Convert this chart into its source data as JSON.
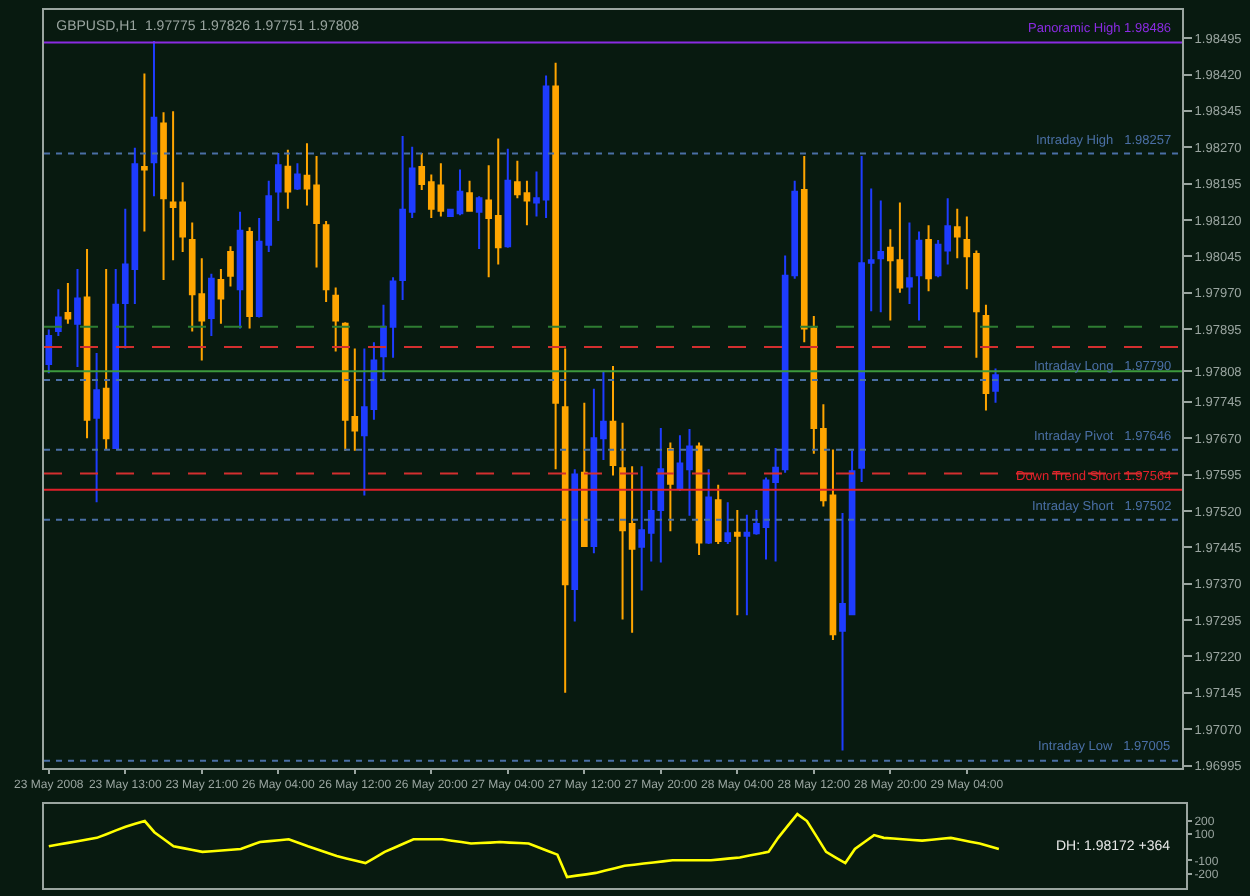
{
  "chart_data": [
    {
      "type": "candlestick",
      "title": "GBPUSD,H1  1.97775 1.97826 1.97751 1.97808",
      "categories": [
        "23 May 2008",
        null,
        null,
        null,
        null,
        null,
        null,
        null,
        "23 May 13:00",
        null,
        null,
        null,
        null,
        null,
        null,
        null,
        "23 May 21:00",
        null,
        null,
        null,
        null,
        null,
        null,
        null,
        "26 May 04:00",
        null,
        null,
        null,
        null,
        null,
        null,
        null,
        "26 May 12:00",
        null,
        null,
        null,
        null,
        null,
        null,
        null,
        "26 May 20:00",
        null,
        null,
        null,
        null,
        null,
        null,
        null,
        "27 May 04:00",
        null,
        null,
        null,
        null,
        null,
        null,
        null,
        "27 May 12:00",
        null,
        null,
        null,
        null,
        null,
        null,
        null,
        "27 May 20:00",
        null,
        null,
        null,
        null,
        null,
        null,
        null,
        "28 May 04:00",
        null,
        null,
        null,
        null,
        null,
        null,
        null,
        "28 May 12:00",
        null,
        null,
        null,
        null,
        null,
        null,
        null,
        "28 May 20:00",
        null,
        null,
        null,
        null,
        null,
        null,
        null,
        "29 May 04:00",
        null,
        null,
        null,
        null,
        null,
        null,
        null,
        null,
        null,
        null,
        null,
        null,
        null,
        null,
        null,
        null,
        null,
        null,
        null,
        null,
        null,
        null
      ],
      "ohlc": [
        [
          1.97823,
          1.97894,
          1.97804,
          1.97881
        ],
        [
          1.97891,
          1.97977,
          1.97881,
          1.97919
        ],
        [
          1.97928,
          1.9799,
          1.97906,
          1.97917
        ],
        [
          1.97906,
          1.98019,
          1.97817,
          1.97958
        ],
        [
          1.9796,
          1.9806,
          1.9767,
          1.97708
        ],
        [
          1.97712,
          1.97846,
          1.97538,
          1.97769
        ],
        [
          1.97772,
          1.98019,
          1.97648,
          1.9767
        ],
        [
          1.9765,
          1.98019,
          1.97648,
          1.97945
        ],
        [
          1.97949,
          1.98143,
          1.97855,
          1.98028
        ],
        [
          1.98019,
          1.98269,
          1.97947,
          1.98235
        ],
        [
          1.98229,
          1.98422,
          1.98096,
          1.98224
        ],
        [
          1.98239,
          1.98489,
          1.98169,
          1.98331
        ],
        [
          1.98319,
          1.98342,
          1.97996,
          1.98165
        ],
        [
          1.98156,
          1.98344,
          1.98037,
          1.98147
        ],
        [
          1.98156,
          1.98198,
          1.98054,
          1.98086
        ],
        [
          1.98079,
          1.98115,
          1.9789,
          1.97967
        ],
        [
          1.97967,
          1.98041,
          1.9783,
          1.97913
        ],
        [
          1.97918,
          1.98009,
          1.97881,
          1.97999
        ],
        [
          1.97996,
          1.98019,
          1.97906,
          1.97958
        ],
        [
          1.98054,
          1.98066,
          1.97983,
          1.98005
        ],
        [
          1.97977,
          1.98137,
          1.97896,
          1.98098
        ],
        [
          1.98095,
          1.98105,
          1.97896,
          1.97922
        ],
        [
          1.97922,
          1.98124,
          1.97919,
          1.98075
        ],
        [
          1.98069,
          1.98201,
          1.98054,
          1.98169
        ],
        [
          1.98179,
          1.98258,
          1.98118,
          1.98233
        ],
        [
          1.9823,
          1.98265,
          1.98143,
          1.98179
        ],
        [
          1.98185,
          1.98237,
          1.98182,
          1.98214
        ],
        [
          1.98211,
          1.98278,
          1.9815,
          1.98185
        ],
        [
          1.98191,
          1.98252,
          1.98022,
          1.98114
        ],
        [
          1.98109,
          1.98118,
          1.97951,
          1.97977
        ],
        [
          1.97964,
          1.97981,
          1.97849,
          1.97913
        ],
        [
          1.97906,
          1.97909,
          1.97644,
          1.97708
        ],
        [
          1.97714,
          1.97855,
          1.97644,
          1.97686
        ],
        [
          1.97676,
          1.97855,
          1.97552,
          1.97734
        ],
        [
          1.9773,
          1.97868,
          1.97708,
          1.9783
        ],
        [
          1.97839,
          1.97945,
          1.97791,
          1.979
        ],
        [
          1.979,
          1.98002,
          1.97836,
          1.97993
        ],
        [
          1.97996,
          1.98293,
          1.97955,
          1.98141
        ],
        [
          1.98137,
          1.98271,
          1.98124,
          1.98226
        ],
        [
          1.98229,
          1.98258,
          1.98182,
          1.98194
        ],
        [
          1.98198,
          1.98214,
          1.98124,
          1.98143
        ],
        [
          1.98191,
          1.98237,
          1.98127,
          1.98139
        ],
        [
          1.98128,
          1.98143,
          1.98127,
          1.98141
        ],
        [
          1.98134,
          1.98224,
          1.9813,
          1.98178
        ],
        [
          1.98175,
          1.98201,
          1.98137,
          1.98139
        ],
        [
          1.98137,
          1.98169,
          1.9806,
          1.98165
        ],
        [
          1.9816,
          1.98233,
          1.98002,
          1.98124
        ],
        [
          1.98128,
          1.98288,
          1.98028,
          1.98064
        ],
        [
          1.98066,
          1.98267,
          1.98063,
          1.98201
        ],
        [
          1.98198,
          1.98242,
          1.98165,
          1.98173
        ],
        [
          1.98175,
          1.98201,
          1.98109,
          1.9816
        ],
        [
          1.98156,
          1.9822,
          1.98127,
          1.98165
        ],
        [
          1.98162,
          1.98418,
          1.98124,
          1.98395
        ],
        [
          1.98395,
          1.98444,
          1.97606,
          1.97743
        ],
        [
          1.97734,
          1.97855,
          1.97145,
          1.97369
        ],
        [
          1.97359,
          1.97606,
          1.97292,
          1.97595
        ],
        [
          1.97599,
          1.97743,
          1.97446,
          1.97448
        ],
        [
          1.97448,
          1.97772,
          1.97433,
          1.9767
        ],
        [
          1.9767,
          1.97807,
          1.97625,
          1.97704
        ],
        [
          1.97704,
          1.97819,
          1.97593,
          1.97615
        ],
        [
          1.97608,
          1.97702,
          1.97296,
          1.9748
        ],
        [
          1.97493,
          1.97612,
          1.97269,
          1.97442
        ],
        [
          1.97446,
          1.97612,
          1.97356,
          1.9748
        ],
        [
          1.97475,
          1.97561,
          1.97416,
          1.9752
        ],
        [
          1.97522,
          1.97691,
          1.97414,
          1.97606
        ],
        [
          1.97648,
          1.97661,
          1.97478,
          1.97576
        ],
        [
          1.97567,
          1.97676,
          1.97561,
          1.97618
        ],
        [
          1.97606,
          1.97689,
          1.9751,
          1.97653
        ],
        [
          1.97653,
          1.97661,
          1.97429,
          1.97455
        ],
        [
          1.97455,
          1.97606,
          1.97452,
          1.97548
        ],
        [
          1.97542,
          1.97574,
          1.97452,
          1.97458
        ],
        [
          1.97458,
          1.97538,
          1.97452,
          1.97474
        ],
        [
          1.97475,
          1.97522,
          1.97305,
          1.97469
        ],
        [
          1.97469,
          1.97512,
          1.97305,
          1.97475
        ],
        [
          1.97474,
          1.97522,
          1.97471,
          1.97493
        ],
        [
          1.97487,
          1.97589,
          1.9742,
          1.97583
        ],
        [
          1.9758,
          1.9765,
          1.97416,
          1.97609
        ],
        [
          1.97606,
          1.98047,
          1.97599,
          1.98005
        ],
        [
          1.98006,
          1.98201,
          1.97999,
          1.98178
        ],
        [
          1.98182,
          1.98252,
          1.97868,
          1.97896
        ],
        [
          1.97896,
          1.97922,
          1.97638,
          1.97691
        ],
        [
          1.97689,
          1.9774,
          1.97529,
          1.97542
        ],
        [
          1.97552,
          1.97647,
          1.97254,
          1.97266
        ],
        [
          1.97273,
          1.97516,
          1.97026,
          1.97328
        ],
        [
          1.97307,
          1.97644,
          1.97305,
          1.97602
        ],
        [
          1.97609,
          1.98252,
          1.9758,
          1.98031
        ],
        [
          1.98032,
          1.98185,
          1.97932,
          1.98037
        ],
        [
          1.98041,
          1.9816,
          1.9793,
          1.98054
        ],
        [
          1.98063,
          1.98101,
          1.97913,
          1.98037
        ],
        [
          1.98037,
          1.98156,
          1.9797,
          1.97981
        ],
        [
          1.97983,
          1.98115,
          1.97947,
          1.98
        ],
        [
          1.98006,
          1.98096,
          1.97913,
          1.98077
        ],
        [
          1.98079,
          1.98109,
          1.97973,
          1.98
        ],
        [
          1.98006,
          1.98079,
          1.98002,
          1.98069
        ],
        [
          1.98057,
          1.98165,
          1.98028,
          1.98107
        ],
        [
          1.98105,
          1.98143,
          1.98041,
          1.98086
        ],
        [
          1.98079,
          1.98127,
          1.97977,
          1.98045
        ],
        [
          1.9805,
          1.98057,
          1.97836,
          1.97932
        ],
        [
          1.97922,
          1.97945,
          1.97727,
          1.97763
        ],
        [
          1.97768,
          1.97814,
          1.97743,
          1.978
        ],
        null,
        null,
        null,
        null,
        null,
        null,
        null,
        null,
        null,
        null,
        null,
        null,
        null,
        null,
        null,
        null,
        null,
        null,
        null
      ],
      "colors": [
        "#1e3cff",
        "#1e3cff",
        "#ffa500",
        "#1e3cff",
        "#ffa500",
        "#1e3cff",
        "#ffa500",
        "#1e3cff",
        "#1e3cff",
        "#1e3cff",
        "#ffa500",
        "#1e3cff",
        "#ffa500",
        "#ffa500",
        "#ffa500",
        "#ffa500",
        "#ffa500",
        "#1e3cff",
        "#ffa500",
        "#ffa500",
        "#1e3cff",
        "#ffa500",
        "#1e3cff",
        "#1e3cff",
        "#1e3cff",
        "#ffa500",
        "#1e3cff",
        "#ffa500",
        "#ffa500",
        "#ffa500",
        "#ffa500",
        "#ffa500",
        "#ffa500",
        "#1e3cff",
        "#1e3cff",
        "#1e3cff",
        "#1e3cff",
        "#1e3cff",
        "#1e3cff",
        "#ffa500",
        "#ffa500",
        "#ffa500",
        "#1e3cff",
        "#1e3cff",
        "#ffa500",
        "#1e3cff",
        "#ffa500",
        "#ffa500",
        "#1e3cff",
        "#ffa500",
        "#ffa500",
        "#1e3cff",
        "#1e3cff",
        "#ffa500",
        "#ffa500",
        "#1e3cff",
        "#ffa500",
        "#1e3cff",
        "#1e3cff",
        "#ffa500",
        "#ffa500",
        "#ffa500",
        "#1e3cff",
        "#1e3cff",
        "#1e3cff",
        "#ffa500",
        "#1e3cff",
        "#1e3cff",
        "#ffa500",
        "#1e3cff",
        "#ffa500",
        "#1e3cff",
        "#ffa500",
        "#1e3cff",
        "#1e3cff",
        "#1e3cff",
        "#1e3cff",
        "#1e3cff",
        "#1e3cff",
        "#ffa500",
        "#ffa500",
        "#ffa500",
        "#ffa500",
        "#1e3cff",
        "#1e3cff",
        "#1e3cff",
        "#1e3cff",
        "#1e3cff",
        "#ffa500",
        "#ffa500",
        "#1e3cff",
        "#1e3cff",
        "#ffa500",
        "#1e3cff",
        "#1e3cff",
        "#ffa500",
        "#ffa500",
        "#ffa500",
        "#ffa500",
        "#1e3cff",
        null,
        null,
        null,
        null,
        null,
        null,
        null,
        null,
        null,
        null,
        null,
        null,
        null,
        null,
        null,
        null,
        null,
        null,
        null
      ],
      "ylim": [
        1.9699,
        1.98553
      ],
      "yticks": [
        {
          "value": 1.96995,
          "label": "1.96995"
        },
        {
          "value": 1.9707,
          "label": "1.97070"
        },
        {
          "value": 1.97145,
          "label": "1.97145"
        },
        {
          "value": 1.9722,
          "label": "1.97220"
        },
        {
          "value": 1.97295,
          "label": "1.97295"
        },
        {
          "value": 1.9737,
          "label": "1.97370"
        },
        {
          "value": 1.97445,
          "label": "1.97445"
        },
        {
          "value": 1.9752,
          "label": "1.97520"
        },
        {
          "value": 1.97595,
          "label": "1.97595"
        },
        {
          "value": 1.9767,
          "label": "1.97670"
        },
        {
          "value": 1.97745,
          "label": "1.97745"
        },
        {
          "value": 1.97808,
          "label": "1.97808"
        },
        {
          "value": 1.97895,
          "label": "1.97895"
        },
        {
          "value": 1.9797,
          "label": "1.97970"
        },
        {
          "value": 1.98045,
          "label": "1.98045"
        },
        {
          "value": 1.9812,
          "label": "1.98120"
        },
        {
          "value": 1.98195,
          "label": "1.98195"
        },
        {
          "value": 1.9827,
          "label": "1.98270"
        },
        {
          "value": 1.98345,
          "label": "1.98345"
        },
        {
          "value": 1.9842,
          "label": "1.98420"
        },
        {
          "value": 1.98495,
          "label": "1.98495"
        }
      ],
      "ref_lines": [
        {
          "axis": "y",
          "value": 1.98486,
          "label": "Panoramic High 1.98486",
          "color": "#8a2be2",
          "line_style": "solid"
        },
        {
          "axis": "y",
          "value": 1.98257,
          "label": "Intraday High   1.98257",
          "color": "#4a6fa5",
          "line_style": "dotted"
        },
        {
          "axis": "y",
          "value": 1.979,
          "color": "#2e7d32",
          "line_style": "dashed"
        },
        {
          "axis": "y",
          "value": 1.97858,
          "color": "#d32f2f",
          "line_style": "dashed"
        },
        {
          "axis": "y",
          "value": 1.97808,
          "color": "#3c9a3c",
          "line_style": "solid"
        },
        {
          "axis": "y",
          "value": 1.9779,
          "label": "Intraday Long   1.97790",
          "color": "#4a6fa5",
          "line_style": "dotted"
        },
        {
          "axis": "y",
          "value": 1.97646,
          "label": "Intraday Pivot   1.97646",
          "color": "#4a6fa5",
          "line_style": "dotted"
        },
        {
          "axis": "y",
          "value": 1.97597,
          "color": "#d32f2f",
          "line_style": "dashed"
        },
        {
          "axis": "y",
          "value": 1.97564,
          "label": "Down Trend Short 1.97564",
          "color": "#e0202a",
          "line_style": "solid"
        },
        {
          "axis": "y",
          "value": 1.97502,
          "label": "Intraday Short   1.97502",
          "color": "#4a6fa5",
          "line_style": "dotted"
        },
        {
          "axis": "y",
          "value": 1.97005,
          "label": "Intraday Low   1.97005",
          "color": "#4a6fa5",
          "line_style": "dotted"
        }
      ],
      "grid": false
    },
    {
      "type": "line",
      "categories": [
        null,
        null,
        null,
        null,
        null,
        null,
        null,
        null,
        null,
        null,
        null,
        null,
        null,
        null,
        null,
        null,
        null,
        null,
        null,
        null,
        null,
        null,
        null,
        null,
        null,
        null,
        null,
        null,
        null,
        null,
        null,
        null,
        null,
        null,
        null,
        null,
        null,
        null,
        null,
        null,
        null,
        null,
        null,
        null,
        null,
        null,
        null,
        null,
        null,
        null,
        null,
        null,
        null,
        null,
        null,
        null,
        null,
        null,
        null,
        null,
        null,
        null,
        null,
        null,
        null,
        null,
        null,
        null,
        null,
        null,
        null,
        null,
        null,
        null,
        null,
        null,
        null,
        null,
        null,
        null,
        null,
        null,
        null,
        null,
        null,
        null,
        null,
        null,
        null,
        null,
        null,
        null,
        null,
        null,
        null,
        null,
        null,
        null,
        null,
        null,
        null,
        null,
        null,
        null,
        null,
        null,
        null,
        null,
        null,
        null,
        null,
        null,
        null,
        null,
        null,
        null,
        null,
        null,
        null
      ],
      "series": [
        {
          "color": "#ffff00",
          "values": [
            8,
            21,
            34,
            46,
            59,
            72,
            100,
            129,
            157,
            179,
            200,
            115,
            62,
            8,
            -6,
            -21,
            -35,
            -30,
            -24,
            -19,
            -13,
            14,
            40,
            47,
            54,
            61,
            35,
            8,
            -17,
            -42,
            -67,
            -85,
            -102,
            -120,
            -78,
            -35,
            -3,
            29,
            61,
            61,
            61,
            61,
            50,
            40,
            29,
            33,
            36,
            40,
            36,
            33,
            29,
            1,
            -28,
            -56,
            -227,
            -216,
            -206,
            -195,
            -177,
            -159,
            -141,
            -133,
            -124,
            -116,
            -107,
            -99,
            -99,
            -99,
            -99,
            -99,
            -92,
            -84,
            -77,
            -63,
            -49,
            -35,
            72,
            163,
            253,
            200,
            83,
            -35,
            -78,
            -120,
            -13,
            40,
            93,
            72,
            67,
            62,
            56,
            51,
            58,
            65,
            72,
            58,
            43,
            29,
            8,
            -13,
            null,
            null,
            null,
            null,
            null,
            null,
            null,
            null,
            null,
            null,
            null,
            null,
            null,
            null,
            null,
            null,
            null,
            null,
            null
          ]
        }
      ],
      "ylim": [
        -310,
        330
      ],
      "yticks": [
        200,
        100,
        -100,
        -200
      ],
      "annotations": [
        "DH: 1.98172 +364"
      ],
      "tick_labels": "y",
      "grid": false,
      "marker": "none"
    }
  ]
}
